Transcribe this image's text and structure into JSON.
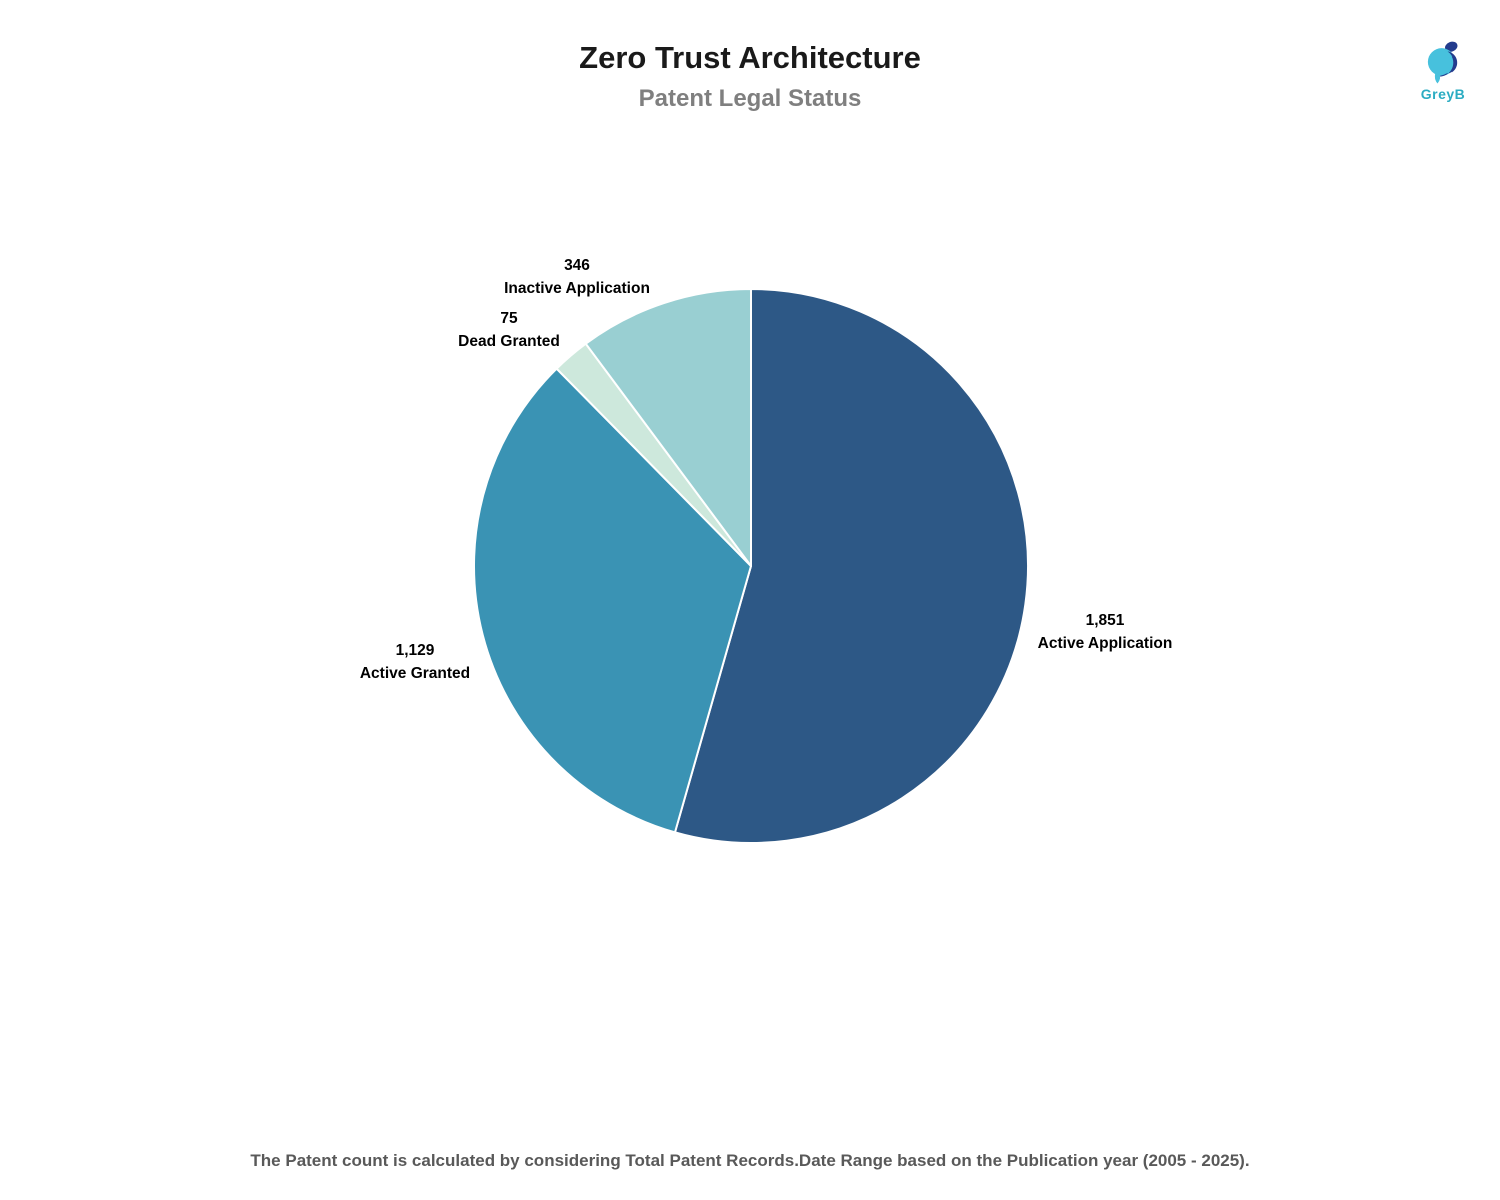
{
  "header": {
    "title": "Zero Trust Architecture",
    "subtitle": "Patent Legal Status"
  },
  "logo": {
    "text": "GreyB",
    "icon": "greyb-bird-icon",
    "icon_colors": {
      "light_blue": "#47c1dd",
      "navy": "#233c8d"
    },
    "text_color": "#2bacc2"
  },
  "chart_data": {
    "type": "pie",
    "title": "Zero Trust Architecture",
    "subtitle": "Patent Legal Status",
    "total": 3401,
    "start_angle_deg": 0,
    "direction": "clockwise",
    "legend_position": "none",
    "slice_separator_color": "#ffffff",
    "slices": [
      {
        "label": "Active Application",
        "value": 1851,
        "value_label": "1,851",
        "color": "#2d5886"
      },
      {
        "label": "Active Granted",
        "value": 1129,
        "value_label": "1,129",
        "color": "#3a93b4"
      },
      {
        "label": "Dead Granted",
        "value": 75,
        "value_label": "75",
        "color": "#cde8dc"
      },
      {
        "label": "Inactive Application",
        "value": 346,
        "value_label": "346",
        "color": "#99cfd2"
      }
    ]
  },
  "footer": {
    "note": "The Patent count is calculated by considering Total Patent Records.Date Range based on the Publication year (2005 - 2025)."
  },
  "colors": {
    "background": "#ffffff",
    "title": "#1a1a1a",
    "subtitle": "#7f7f7f",
    "labels": "#000000",
    "footer": "#595959"
  }
}
